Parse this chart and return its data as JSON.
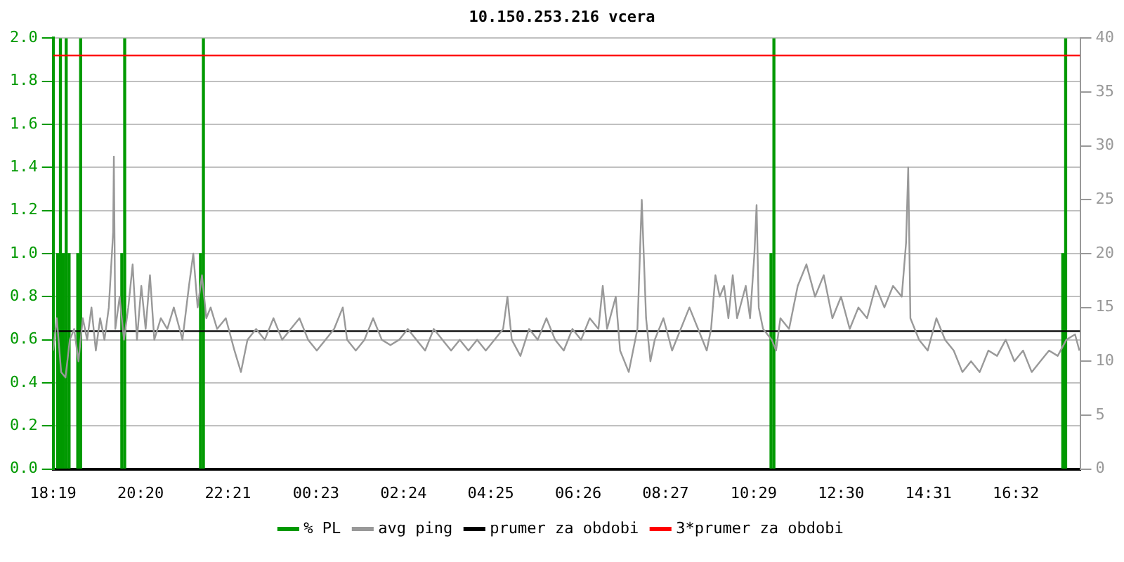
{
  "chart_data": {
    "type": "line",
    "title": "10.150.253.216 vcera",
    "xlim": [
      "--01-01T18:19",
      "--01-02T18:01"
    ],
    "xticks": [
      {
        "value": "--01-01T18:19",
        "label": "18:19"
      },
      {
        "value": "--01-01T20:20",
        "label": "20:20"
      },
      {
        "value": "--01-01T22:21",
        "label": "22:21"
      },
      {
        "value": "--01-02T00:23",
        "label": "00:23"
      },
      {
        "value": "--01-02T02:24",
        "label": "02:24"
      },
      {
        "value": "--01-02T04:25",
        "label": "04:25"
      },
      {
        "value": "--01-02T06:26",
        "label": "06:26"
      },
      {
        "value": "--01-02T08:27",
        "label": "08:27"
      },
      {
        "value": "--01-02T10:29",
        "label": "10:29"
      },
      {
        "value": "--01-02T12:30",
        "label": "12:30"
      },
      {
        "value": "--01-02T14:31",
        "label": "14:31"
      },
      {
        "value": "--01-02T16:32",
        "label": "16:32"
      }
    ],
    "ylim": [
      0,
      2
    ],
    "yticks": [
      {
        "value": 0,
        "label": "0.0"
      },
      {
        "value": 0.2,
        "label": "0.2"
      },
      {
        "value": 0.4,
        "label": "0.4"
      },
      {
        "value": 0.6,
        "label": "0.6"
      },
      {
        "value": 0.8,
        "label": "0.8"
      },
      {
        "value": 1,
        "label": "1.0"
      },
      {
        "value": 1.2,
        "label": "1.2"
      },
      {
        "value": 1.4,
        "label": "1.4"
      },
      {
        "value": 1.6,
        "label": "1.6"
      },
      {
        "value": 1.8,
        "label": "1.8"
      },
      {
        "value": 2,
        "label": "2.0"
      }
    ],
    "y2lim": [
      0,
      40
    ],
    "y2ticks": [
      0,
      5,
      10,
      15,
      20,
      25,
      30,
      35,
      40
    ],
    "grid": "y",
    "legend": "bottom",
    "marker": "none",
    "line_style": "solid",
    "series": [
      {
        "name": "% PL",
        "type": "bar",
        "color": "#009900",
        "x": [
          "--01-01T18:25",
          "--01-01T18:29",
          "--01-01T18:33",
          "--01-01T18:37",
          "--01-01T18:41",
          "--01-01T18:53",
          "--01-01T18:57",
          "--01-01T19:54",
          "--01-01T19:58",
          "--01-01T21:43",
          "--01-01T21:47",
          "--01-02T10:53",
          "--01-02T10:57",
          "--01-02T17:37",
          "--01-02T17:41"
        ],
        "values": [
          1,
          2,
          1,
          2,
          1,
          1,
          2,
          1,
          2,
          1,
          2,
          1,
          2,
          1,
          2
        ]
      },
      {
        "name": "avg ping",
        "axis": "y2",
        "color": "#999999",
        "x": [
          "--01-01T18:19",
          "--01-01T18:24",
          "--01-01T18:30",
          "--01-01T18:36",
          "--01-01T18:42",
          "--01-01T18:48",
          "--01-01T18:54",
          "--01-01T19:00",
          "--01-01T19:06",
          "--01-01T19:12",
          "--01-01T19:18",
          "--01-01T19:24",
          "--01-01T19:30",
          "--01-01T19:36",
          "--01-01T19:42",
          "--01-01T19:43",
          "--01-01T19:45",
          "--01-01T19:51",
          "--01-01T19:57",
          "--01-01T20:03",
          "--01-01T20:09",
          "--01-01T20:15",
          "--01-01T20:21",
          "--01-01T20:27",
          "--01-01T20:33",
          "--01-01T20:39",
          "--01-01T20:48",
          "--01-01T20:57",
          "--01-01T21:06",
          "--01-01T21:18",
          "--01-01T21:27",
          "--01-01T21:33",
          "--01-01T21:39",
          "--01-01T21:45",
          "--01-01T21:51",
          "--01-01T21:57",
          "--01-01T22:06",
          "--01-01T22:18",
          "--01-01T22:30",
          "--01-01T22:39",
          "--01-01T22:48",
          "--01-01T23:00",
          "--01-01T23:12",
          "--01-01T23:24",
          "--01-01T23:36",
          "--01-01T23:48",
          "--01-02T00:00",
          "--01-02T00:12",
          "--01-02T00:24",
          "--01-02T00:36",
          "--01-02T00:48",
          "--01-02T01:00",
          "--01-02T01:06",
          "--01-02T01:18",
          "--01-02T01:30",
          "--01-02T01:42",
          "--01-02T01:54",
          "--01-02T02:06",
          "--01-02T02:18",
          "--01-02T02:30",
          "--01-02T02:42",
          "--01-02T02:54",
          "--01-02T03:06",
          "--01-02T03:18",
          "--01-02T03:30",
          "--01-02T03:42",
          "--01-02T03:54",
          "--01-02T04:06",
          "--01-02T04:18",
          "--01-02T04:30",
          "--01-02T04:42",
          "--01-02T04:48",
          "--01-02T04:54",
          "--01-02T05:06",
          "--01-02T05:18",
          "--01-02T05:30",
          "--01-02T05:42",
          "--01-02T05:54",
          "--01-02T06:06",
          "--01-02T06:18",
          "--01-02T06:30",
          "--01-02T06:42",
          "--01-02T06:54",
          "--01-02T07:00",
          "--01-02T07:06",
          "--01-02T07:18",
          "--01-02T07:24",
          "--01-02T07:36",
          "--01-02T07:48",
          "--01-02T07:54",
          "--01-02T08:00",
          "--01-02T08:06",
          "--01-02T08:12",
          "--01-02T08:24",
          "--01-02T08:36",
          "--01-02T08:48",
          "--01-02T09:00",
          "--01-02T09:12",
          "--01-02T09:24",
          "--01-02T09:30",
          "--01-02T09:36",
          "--01-02T09:42",
          "--01-02T09:48",
          "--01-02T09:54",
          "--01-02T10:00",
          "--01-02T10:06",
          "--01-02T10:18",
          "--01-02T10:24",
          "--01-02T10:30",
          "--01-02T10:33",
          "--01-02T10:36",
          "--01-02T10:42",
          "--01-02T10:54",
          "--01-02T11:00",
          "--01-02T11:06",
          "--01-02T11:18",
          "--01-02T11:30",
          "--01-02T11:42",
          "--01-02T11:54",
          "--01-02T12:06",
          "--01-02T12:18",
          "--01-02T12:30",
          "--01-02T12:42",
          "--01-02T12:54",
          "--01-02T13:06",
          "--01-02T13:18",
          "--01-02T13:30",
          "--01-02T13:42",
          "--01-02T13:54",
          "--01-02T14:00",
          "--01-02T14:03",
          "--01-02T14:06",
          "--01-02T14:18",
          "--01-02T14:30",
          "--01-02T14:42",
          "--01-02T14:54",
          "--01-02T15:06",
          "--01-02T15:18",
          "--01-02T15:30",
          "--01-02T15:42",
          "--01-02T15:54",
          "--01-02T16:06",
          "--01-02T16:18",
          "--01-02T16:30",
          "--01-02T16:42",
          "--01-02T16:54",
          "--01-02T17:06",
          "--01-02T17:18",
          "--01-02T17:30",
          "--01-02T17:42",
          "--01-02T17:54",
          "--01-02T18:00"
        ],
        "values": [
          11,
          14,
          9,
          8.5,
          12,
          13,
          10,
          14,
          12,
          15,
          11,
          14,
          12,
          15,
          22,
          29,
          13,
          16,
          12,
          15,
          19,
          12,
          17,
          13,
          18,
          12,
          14,
          13,
          15,
          12,
          17,
          20,
          15,
          18,
          14,
          15,
          13,
          14,
          11,
          9,
          12,
          13,
          12,
          14,
          12,
          13,
          14,
          12,
          11,
          12,
          13,
          15,
          12,
          11,
          12,
          14,
          12,
          11.5,
          12,
          13,
          12,
          11,
          13,
          12,
          11,
          12,
          11,
          12,
          11,
          12,
          13,
          16,
          12,
          10.5,
          13,
          12,
          14,
          12,
          11,
          13,
          12,
          14,
          13,
          17,
          13,
          16,
          11,
          9,
          13,
          25,
          14,
          10,
          12,
          14,
          11,
          13,
          15,
          13,
          11,
          13,
          18,
          16,
          17,
          14,
          18,
          14,
          17,
          14,
          20,
          24.5,
          15,
          13,
          12,
          11,
          14,
          13,
          17,
          19,
          16,
          18,
          14,
          16,
          13,
          15,
          14,
          17,
          15,
          17,
          16,
          21,
          28,
          14,
          12,
          11,
          14,
          12,
          11,
          9,
          10,
          9,
          11,
          10.5,
          12,
          10,
          11,
          9,
          10,
          11,
          10.5,
          12,
          12.5,
          11
        ]
      },
      {
        "name": "prumer za obdobi",
        "axis": "y2",
        "color": "#000000",
        "x": [
          "--01-01T18:19",
          "--01-02T18:01"
        ],
        "values": [
          12.8,
          12.8
        ]
      },
      {
        "name": "3*prumer za obdobi",
        "axis": "y2",
        "color": "#ff0000",
        "x": [
          "--01-01T18:19",
          "--01-02T18:01"
        ],
        "values": [
          38.4,
          38.4
        ]
      }
    ]
  }
}
